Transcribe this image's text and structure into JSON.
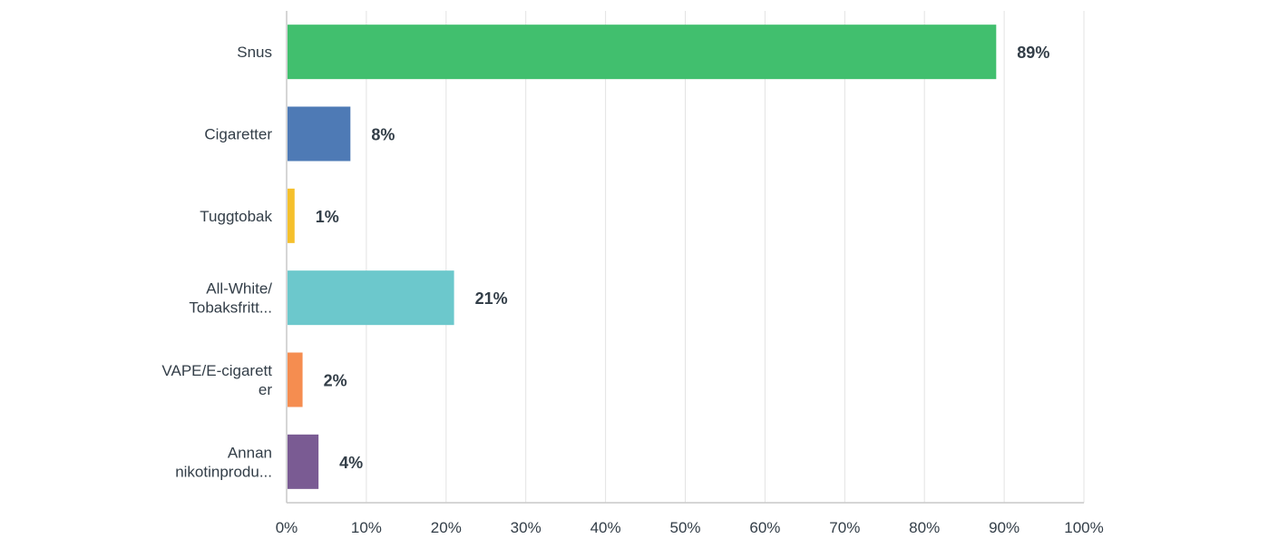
{
  "chart_data": {
    "type": "bar",
    "orientation": "horizontal",
    "categories": [
      [
        "Snus"
      ],
      [
        "Cigaretter"
      ],
      [
        "Tuggtobak"
      ],
      [
        "All-White/",
        "Tobaksfritt..."
      ],
      [
        "VAPE/E-cigarett",
        "er"
      ],
      [
        "Annan",
        "nikotinprodu..."
      ]
    ],
    "values": [
      89,
      8,
      1,
      21,
      2,
      4
    ],
    "value_labels": [
      "89%",
      "8%",
      "1%",
      "21%",
      "2%",
      "4%"
    ],
    "colors": [
      "#41bf6e",
      "#4e7ab5",
      "#f5c02c",
      "#6cc8cc",
      "#f58d50",
      "#7a5b93"
    ],
    "xlim": [
      0,
      100
    ],
    "x_ticks": [
      0,
      10,
      20,
      30,
      40,
      50,
      60,
      70,
      80,
      90,
      100
    ],
    "x_tick_labels": [
      "0%",
      "10%",
      "20%",
      "30%",
      "40%",
      "50%",
      "60%",
      "70%",
      "80%",
      "90%",
      "100%"
    ],
    "grid": true,
    "title": "",
    "xlabel": "",
    "ylabel": ""
  }
}
